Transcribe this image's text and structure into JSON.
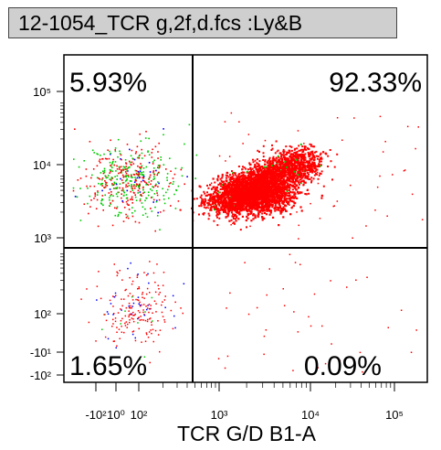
{
  "title": "12-1054_TCR g,2f,d.fcs :Ly&B",
  "chart_data": {
    "type": "scatter",
    "title": "12-1054_TCR g,2f,d.fcs :Ly&B",
    "xlabel": "TCR G/D B1-A",
    "ylabel": "",
    "x_scale": "biexponential",
    "y_scale": "biexponential",
    "x_ticks": [
      "-10²",
      "10⁰",
      "10²",
      "10³",
      "10⁴",
      "10⁵"
    ],
    "y_ticks": [
      "10⁵",
      "10⁴",
      "10³",
      "10²",
      "-10¹",
      "-10²"
    ],
    "gate": {
      "x": 450,
      "y": 900
    },
    "quadrants": [
      {
        "position": "top-left",
        "label": "5.93%",
        "value": 5.93
      },
      {
        "position": "top-right",
        "label": "92.33%",
        "value": 92.33
      },
      {
        "position": "bottom-left",
        "label": "1.65%",
        "value": 1.65
      },
      {
        "position": "bottom-right",
        "label": "0.09%",
        "value": 0.09
      }
    ],
    "populations": [
      {
        "name": "main",
        "color": "#ff0000",
        "x_center": 2000,
        "y_center": 5000,
        "density": "high"
      },
      {
        "name": "upper-left",
        "color": "#ff0000",
        "x_center": 20,
        "y_center": 8000,
        "density": "low"
      },
      {
        "name": "lower-left",
        "color": "#ff0000",
        "x_center": 50,
        "y_center": 80,
        "density": "low"
      }
    ],
    "grid": false,
    "point_colors": [
      "#ff0000",
      "#00cc00",
      "#0000ff"
    ]
  }
}
